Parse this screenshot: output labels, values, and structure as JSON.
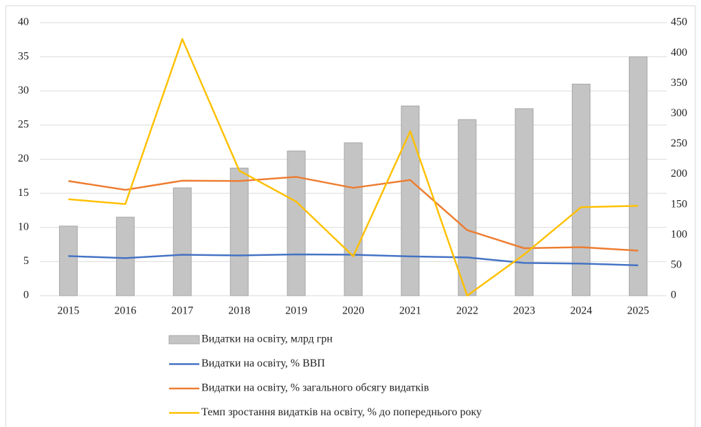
{
  "chart_data": {
    "type": "combo",
    "categories": [
      "2015",
      "2016",
      "2017",
      "2018",
      "2019",
      "2020",
      "2021",
      "2022",
      "2023",
      "2024",
      "2025"
    ],
    "series": [
      {
        "name": "Видатки на освіту, млрд грн",
        "type": "bar",
        "color": "#c4c4c4",
        "values": [
          10.2,
          11.5,
          15.8,
          18.7,
          21.2,
          22.4,
          27.8,
          25.8,
          27.4,
          31.0,
          35.0
        ]
      },
      {
        "name": "Видатки на освіту, % ВВП",
        "type": "line",
        "color": "#4472c4",
        "values": [
          5.8,
          5.5,
          6.0,
          5.9,
          6.05,
          6.0,
          5.75,
          5.6,
          4.8,
          4.7,
          4.45
        ]
      },
      {
        "name": "Видатки на освіту, % загального обсягу видатків",
        "type": "line",
        "color": "#ed7d31",
        "values": [
          16.8,
          15.5,
          16.85,
          16.8,
          17.4,
          15.8,
          16.95,
          9.6,
          6.95,
          7.1,
          6.6
        ]
      },
      {
        "name": "Темп зростання видатків на освіту, % до попереднього року",
        "type": "line",
        "axis": "y2",
        "color": "#ffc000",
        "values": [
          159,
          151,
          423,
          206,
          155,
          65,
          271,
          0,
          68,
          146,
          148
        ]
      }
    ],
    "ylim": [
      0,
      40
    ],
    "yticks": [
      0,
      5,
      10,
      15,
      20,
      25,
      30,
      35,
      40
    ],
    "y2lim": [
      0,
      450
    ],
    "y2ticks": [
      0,
      50,
      100,
      150,
      200,
      250,
      300,
      350,
      400,
      450
    ],
    "grid": true
  }
}
